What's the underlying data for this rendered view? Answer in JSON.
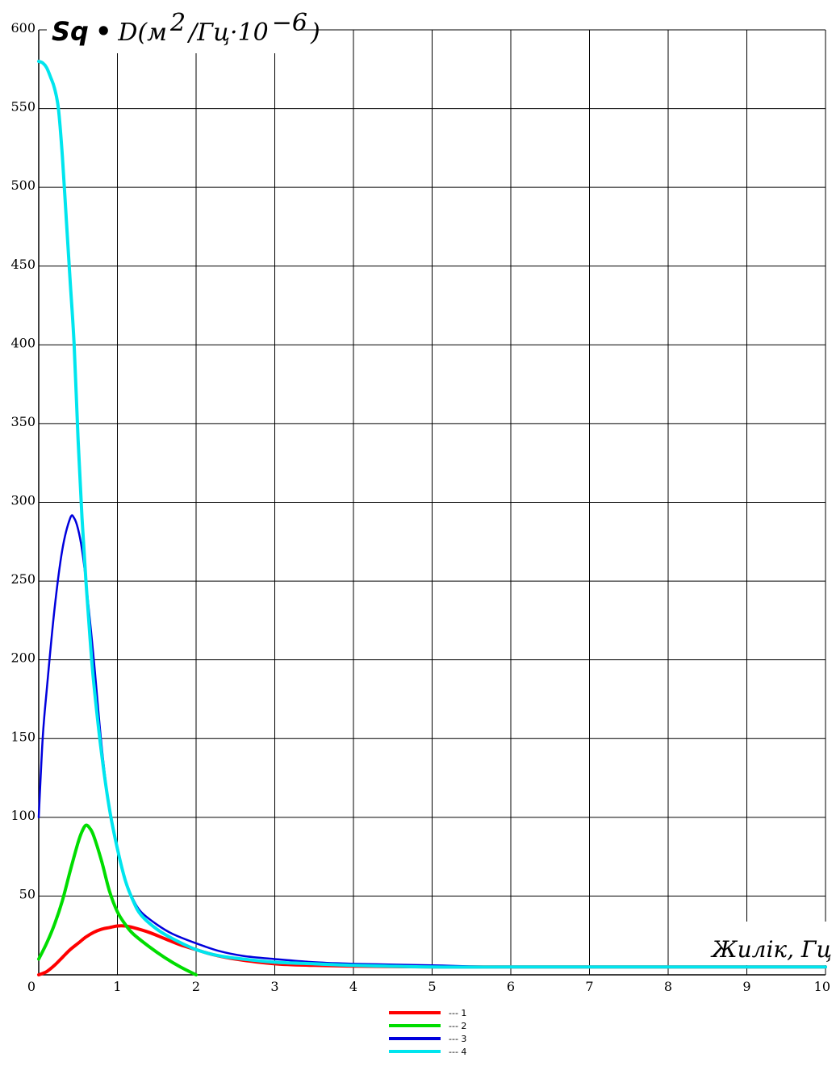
{
  "chart_data": {
    "type": "line",
    "ylabel": {
      "prefix": "Sq",
      "bullet": "•",
      "body": "D(м",
      "sup1": "2",
      "middle": "/Гц·10",
      "sup2": "−6",
      "close": ")"
    },
    "xlabel": "Жилік, Гц",
    "xlim": [
      0,
      10
    ],
    "ylim": [
      0,
      600
    ],
    "xticks": [
      0,
      1,
      2,
      3,
      4,
      5,
      6,
      7,
      8,
      9,
      10
    ],
    "yticks": [
      50,
      100,
      150,
      200,
      250,
      300,
      350,
      400,
      450,
      500,
      550,
      600
    ],
    "grid": true,
    "legend_position": "bottom-center",
    "series": [
      {
        "name": "1",
        "color": "#ff0000",
        "x": [
          0,
          0.1,
          0.2,
          0.3,
          0.4,
          0.5,
          0.6,
          0.7,
          0.8,
          0.9,
          1.0,
          1.1,
          1.2,
          1.4,
          1.6,
          1.8,
          2.0,
          2.2,
          2.5,
          3.0,
          3.5,
          4.0,
          5.0,
          6.0,
          8.0,
          10.0
        ],
        "y": [
          0,
          2,
          6,
          11,
          16,
          20,
          24,
          27,
          29,
          30,
          31,
          31,
          30,
          27,
          23,
          19,
          16,
          13,
          10,
          7,
          6,
          5.5,
          5,
          5,
          5,
          5
        ]
      },
      {
        "name": "2",
        "color": "#00dd00",
        "x": [
          0,
          0.1,
          0.2,
          0.3,
          0.4,
          0.5,
          0.55,
          0.6,
          0.65,
          0.7,
          0.8,
          0.9,
          1.0,
          1.1,
          1.2,
          1.4,
          1.6,
          1.8,
          2.0
        ],
        "y": [
          10,
          20,
          32,
          47,
          66,
          84,
          91,
          95,
          93,
          88,
          72,
          53,
          40,
          32,
          26,
          18,
          11,
          5,
          0
        ]
      },
      {
        "name": "3",
        "color": "#0000dd",
        "x": [
          0,
          0.05,
          0.1,
          0.2,
          0.3,
          0.4,
          0.45,
          0.5,
          0.55,
          0.6,
          0.7,
          0.8,
          0.9,
          1.0,
          1.1,
          1.2,
          1.3,
          1.5,
          1.7,
          2.0,
          2.3,
          2.6,
          3.0,
          3.5,
          4.0,
          5.0,
          6.0,
          8.0,
          10.0
        ],
        "y": [
          100,
          150,
          180,
          232,
          270,
          290,
          290,
          283,
          270,
          250,
          200,
          145,
          105,
          80,
          60,
          48,
          40,
          32,
          26,
          20,
          15,
          12,
          10,
          8,
          7,
          6,
          5,
          5,
          5
        ]
      },
      {
        "name": "4",
        "color": "#00e5ee",
        "x": [
          0,
          0.05,
          0.1,
          0.15,
          0.2,
          0.25,
          0.3,
          0.35,
          0.4,
          0.45,
          0.5,
          0.55,
          0.6,
          0.65,
          0.7,
          0.8,
          0.9,
          1.0,
          1.1,
          1.2,
          1.3,
          1.5,
          1.7,
          2.0,
          2.3,
          2.6,
          3.0,
          3.5,
          4.0,
          5.0,
          6.0,
          8.0,
          10.0
        ],
        "y": [
          580,
          579,
          576,
          570,
          563,
          550,
          520,
          480,
          440,
          400,
          340,
          290,
          250,
          215,
          185,
          140,
          105,
          80,
          60,
          47,
          38,
          29,
          23,
          16,
          12,
          10,
          8,
          7,
          6,
          5,
          5,
          5,
          5
        ]
      }
    ]
  }
}
